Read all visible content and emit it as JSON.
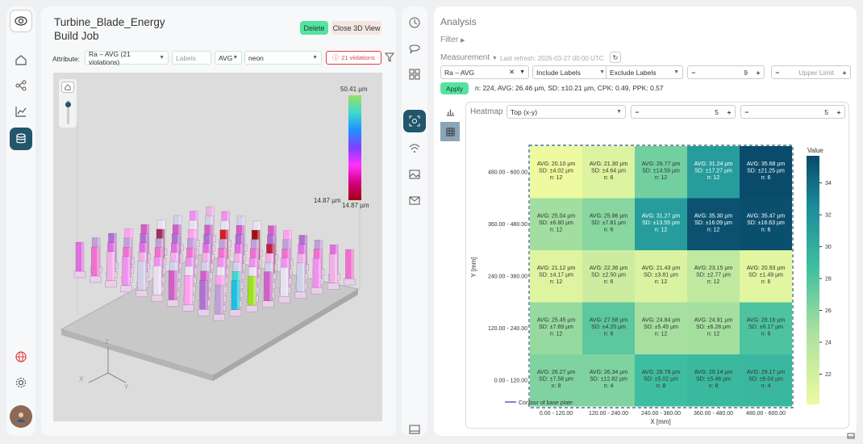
{
  "left_panel": {
    "title_line1": "Turbine_Blade_Energy",
    "title_line2": "Build Job",
    "delete_label": "Delete",
    "close3d_label": "Close 3D View",
    "attribute_label": "Attribute:",
    "attribute_value": "Ra – AVG (21 violations)",
    "labels_placeholder": "Labels",
    "stat_value": "AVG",
    "colormap_value": "neon",
    "violations_label": "21 violations",
    "legend_max": "50.41 µm",
    "legend_min_left": "14.87 µm",
    "legend_min_bottom": "14.87 µm",
    "axis_x": "X",
    "axis_y": "Y",
    "axis_z": "Z"
  },
  "analysis": {
    "title": "Analysis",
    "filter_label": "Filter",
    "measurement_label": "Measurement",
    "last_refresh": "Last refresh: 2026-03-27 00:00 UTC",
    "measure_value": "Ra – AVG",
    "include_labels": "Include Labels",
    "exclude_labels": "Exclude Labels",
    "lower_value": "9",
    "upper_placeholder": "Upper Limit",
    "apply_label": "Apply",
    "stats": "n: 224, AVG: 26.46 µm, SD: ±10.21 µm, CPK: 0.49, PPK: 0.57",
    "heatmap_label": "Heatmap",
    "view_value": "Top (x-y)",
    "step_x": "5",
    "step_y": "5"
  },
  "chart_data": {
    "type": "heatmap",
    "xlabel": "X [mm]",
    "ylabel": "Y [mm]",
    "colorbar_title": "Value",
    "colorbar_ticks": [
      "22",
      "24",
      "26",
      "28",
      "30",
      "32",
      "34"
    ],
    "colorbar_range": [
      20.1,
      35.7
    ],
    "legend_entry": "Contour of base plate",
    "x_categories": [
      "0.00 - 120.00",
      "120.00 - 240.00",
      "240.00 - 360.00",
      "360.00 - 480.00",
      "480.00 - 600.00"
    ],
    "y_categories": [
      "0.00 - 120.00",
      "120.00 - 240.00",
      "240.00 - 360.00",
      "360.00 - 480.00",
      "480.00 - 600.00"
    ],
    "rows": [
      {
        "y": "480.00 - 600.00",
        "cells": [
          {
            "value": 20.1,
            "avg": "AVG: 20.10 µm",
            "sd": "SD: ±4.02 µm",
            "n": "n: 12"
          },
          {
            "value": 21.3,
            "avg": "AVG: 21.30 µm",
            "sd": "SD: ±4.64 µm",
            "n": "n: 6"
          },
          {
            "value": 26.77,
            "avg": "AVG: 26.77 µm",
            "sd": "SD: ±14.59 µm",
            "n": "n: 12"
          },
          {
            "value": 31.24,
            "avg": "AVG: 31.24 µm",
            "sd": "SD: ±17.27 µm",
            "n": "n: 12"
          },
          {
            "value": 35.68,
            "avg": "AVG: 35.68 µm",
            "sd": "SD: ±21.25 µm",
            "n": "n: 6"
          }
        ]
      },
      {
        "y": "360.00 - 480.00",
        "cells": [
          {
            "value": 25.04,
            "avg": "AVG: 25.04 µm",
            "sd": "SD: ±6.80 µm",
            "n": "n: 12"
          },
          {
            "value": 25.96,
            "avg": "AVG: 25.96 µm",
            "sd": "SD: ±7.81 µm",
            "n": "n: 6"
          },
          {
            "value": 31.27,
            "avg": "AVG: 31.27 µm",
            "sd": "SD: ±13.55 µm",
            "n": "n: 12"
          },
          {
            "value": 35.3,
            "avg": "AVG: 35.30 µm",
            "sd": "SD: ±16.09 µm",
            "n": "n: 12"
          },
          {
            "value": 35.47,
            "avg": "AVG: 35.47 µm",
            "sd": "SD: ±16.63 µm",
            "n": "n: 6"
          }
        ]
      },
      {
        "y": "240.00 - 360.00",
        "cells": [
          {
            "value": 21.12,
            "avg": "AVG: 21.12 µm",
            "sd": "SD: ±4.17 µm",
            "n": "n: 12"
          },
          {
            "value": 22.36,
            "avg": "AVG: 22.36 µm",
            "sd": "SD: ±2.50 µm",
            "n": "n: 6"
          },
          {
            "value": 21.43,
            "avg": "AVG: 21.43 µm",
            "sd": "SD: ±3.81 µm",
            "n": "n: 12"
          },
          {
            "value": 23.15,
            "avg": "AVG: 23.15 µm",
            "sd": "SD: ±2.77 µm",
            "n": "n: 12"
          },
          {
            "value": 20.93,
            "avg": "AVG: 20.93 µm",
            "sd": "SD: ±1.49 µm",
            "n": "n: 6"
          }
        ]
      },
      {
        "y": "120.00 - 240.00",
        "cells": [
          {
            "value": 25.45,
            "avg": "AVG: 25.45 µm",
            "sd": "SD: ±7.69 µm",
            "n": "n: 12"
          },
          {
            "value": 27.58,
            "avg": "AVG: 27.58 µm",
            "sd": "SD: ±4.20 µm",
            "n": "n: 6"
          },
          {
            "value": 24.84,
            "avg": "AVG: 24.84 µm",
            "sd": "SD: ±5.45 µm",
            "n": "n: 12"
          },
          {
            "value": 24.91,
            "avg": "AVG: 24.91 µm",
            "sd": "SD: ±6.28 µm",
            "n": "n: 12"
          },
          {
            "value": 28.16,
            "avg": "AVG: 28.16 µm",
            "sd": "SD: ±6.17 µm",
            "n": "n: 6"
          }
        ]
      },
      {
        "y": "0.00 - 120.00",
        "cells": [
          {
            "value": 26.27,
            "avg": "AVG: 26.27 µm",
            "sd": "SD: ±7.58 µm",
            "n": "n: 8"
          },
          {
            "value": 26.34,
            "avg": "AVG: 26.34 µm",
            "sd": "SD: ±12.82 µm",
            "n": "n: 4"
          },
          {
            "value": 28.78,
            "avg": "AVG: 28.78 µm",
            "sd": "SD: ±5.02 µm",
            "n": "n: 8"
          },
          {
            "value": 29.14,
            "avg": "AVG: 29.14 µm",
            "sd": "SD: ±5.46 µm",
            "n": "n: 8"
          },
          {
            "value": 29.17,
            "avg": "AVG: 29.17 µm",
            "sd": "SD: ±6.04 µm",
            "n": "n: 4"
          }
        ]
      }
    ]
  },
  "colors": {
    "accent": "#56e39f",
    "rail_active": "#21566b",
    "violation": "#e04040"
  }
}
